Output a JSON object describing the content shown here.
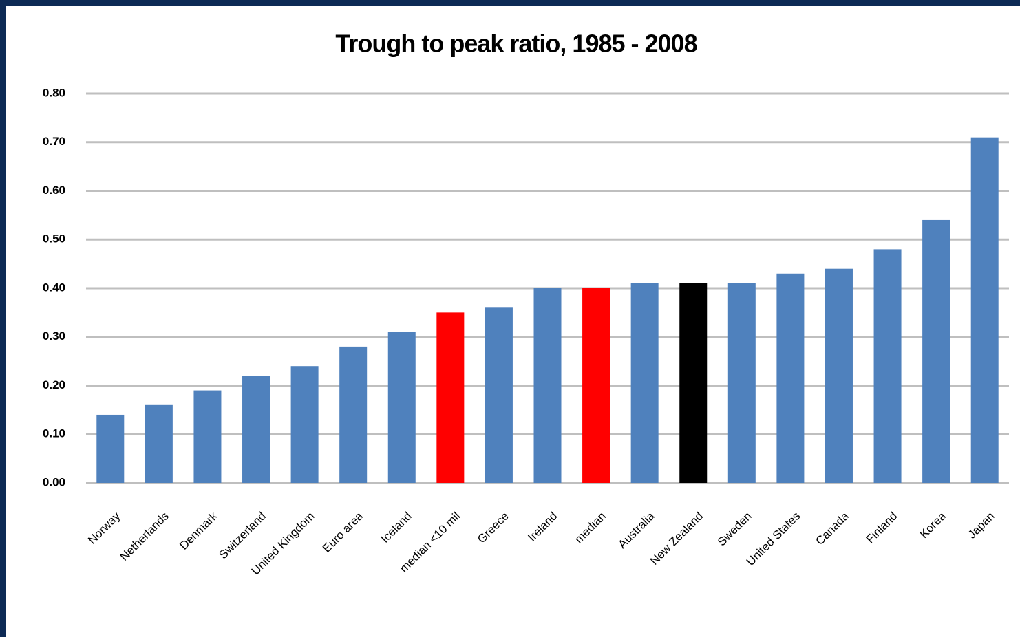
{
  "chart_data": {
    "type": "bar",
    "title": "Trough to peak ratio, 1985 - 2008",
    "categories": [
      "Norway",
      "Netherlands",
      "Denmark",
      "Switzerland",
      "United Kingdom",
      "Euro area",
      "Iceland",
      "median <10 mil",
      "Greece",
      "Ireland",
      "median",
      "Australia",
      "New Zealand",
      "Sweden",
      "United States",
      "Canada",
      "Finland",
      "Korea",
      "Japan"
    ],
    "values": [
      0.14,
      0.16,
      0.19,
      0.22,
      0.24,
      0.28,
      0.31,
      0.35,
      0.36,
      0.4,
      0.4,
      0.41,
      0.41,
      0.41,
      0.43,
      0.44,
      0.48,
      0.54,
      0.71
    ],
    "colors": [
      "#4f81bd",
      "#4f81bd",
      "#4f81bd",
      "#4f81bd",
      "#4f81bd",
      "#4f81bd",
      "#4f81bd",
      "#ff0000",
      "#4f81bd",
      "#4f81bd",
      "#ff0000",
      "#4f81bd",
      "#000000",
      "#4f81bd",
      "#4f81bd",
      "#4f81bd",
      "#4f81bd",
      "#4f81bd",
      "#4f81bd"
    ],
    "ylim": [
      0,
      0.8
    ],
    "yticks": [
      {
        "value": 0,
        "label": "0.00"
      },
      {
        "value": 0.1,
        "label": "0.10"
      },
      {
        "value": 0.2,
        "label": "0.20"
      },
      {
        "value": 0.3,
        "label": "0.30"
      },
      {
        "value": 0.4,
        "label": "0.40"
      },
      {
        "value": 0.5,
        "label": "0.50"
      },
      {
        "value": 0.6,
        "label": "0.60"
      },
      {
        "value": 0.7,
        "label": "0.70"
      },
      {
        "value": 0.8,
        "label": "0.80"
      }
    ],
    "grid": true
  }
}
